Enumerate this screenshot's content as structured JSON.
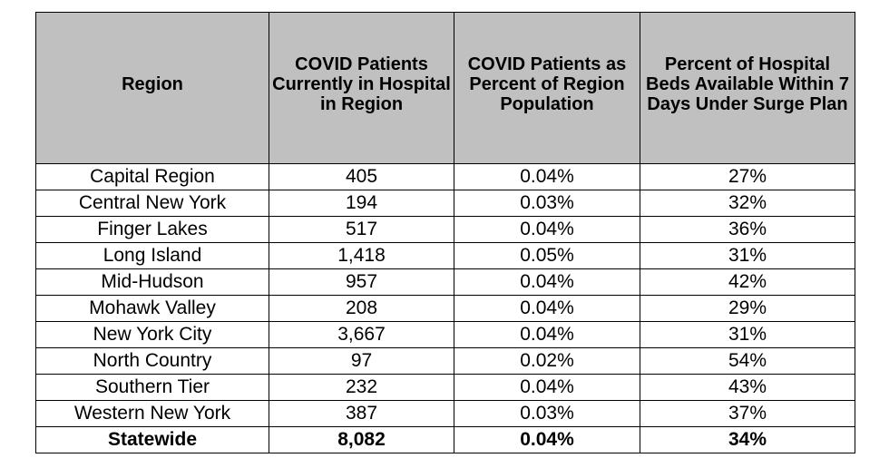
{
  "table": {
    "headers": [
      "Region",
      "COVID Patients Currently in Hospital in Region",
      "COVID Patients as Percent of Region Population",
      "Percent of Hospital Beds Available Within 7 Days Under Surge Plan"
    ],
    "rows": [
      [
        "Capital Region",
        "405",
        "0.04%",
        "27%"
      ],
      [
        "Central New York",
        "194",
        "0.03%",
        "32%"
      ],
      [
        "Finger Lakes",
        "517",
        "0.04%",
        "36%"
      ],
      [
        "Long Island",
        "1,418",
        "0.05%",
        "31%"
      ],
      [
        "Mid-Hudson",
        "957",
        "0.04%",
        "42%"
      ],
      [
        "Mohawk Valley",
        "208",
        "0.04%",
        "29%"
      ],
      [
        "New York City",
        "3,667",
        "0.04%",
        "31%"
      ],
      [
        "North Country",
        "97",
        "0.02%",
        "54%"
      ],
      [
        "Southern Tier",
        "232",
        "0.04%",
        "43%"
      ],
      [
        "Western New York",
        "387",
        "0.03%",
        "37%"
      ]
    ],
    "total": [
      "Statewide",
      "8,082",
      "0.04%",
      "34%"
    ]
  }
}
